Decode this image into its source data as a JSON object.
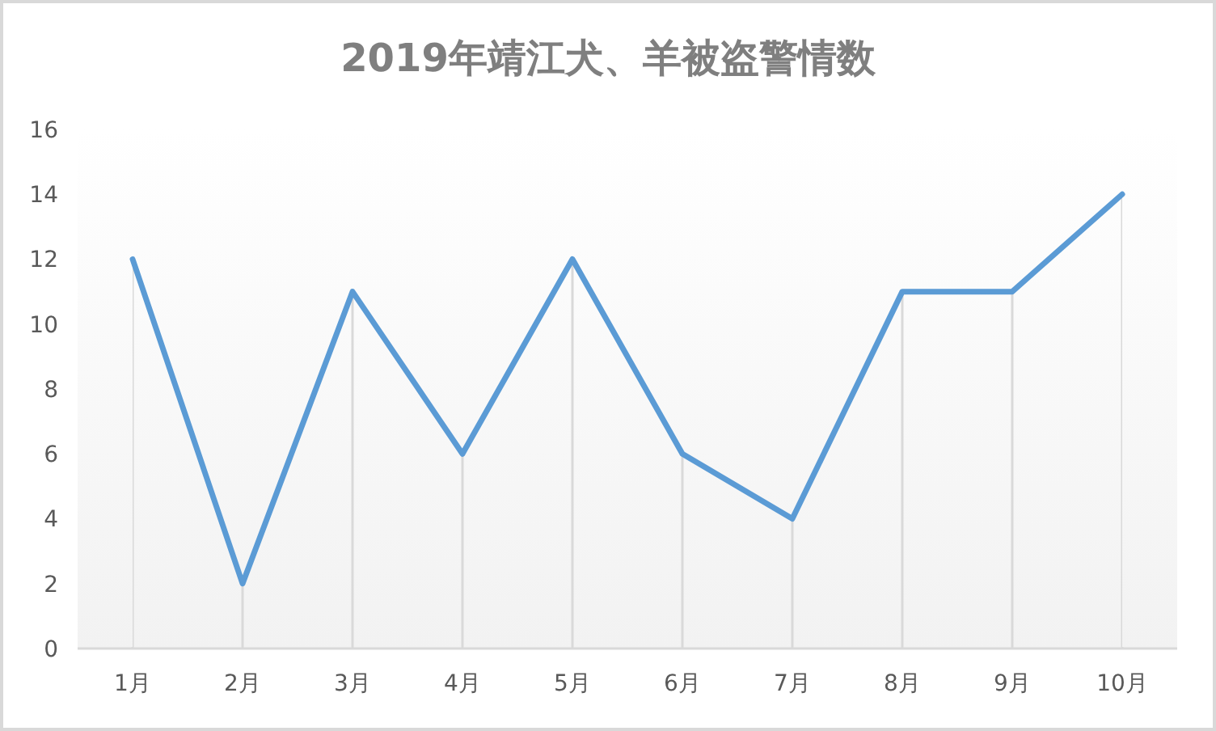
{
  "chart_data": {
    "type": "line",
    "title": "2019年靖江犬、羊被盗警情数",
    "categories": [
      "1月",
      "2月",
      "3月",
      "4月",
      "5月",
      "6月",
      "7月",
      "8月",
      "9月",
      "10月"
    ],
    "series": [
      {
        "color": "#5b9bd5",
        "values": [
          12,
          2,
          11,
          6,
          12,
          6,
          4,
          11,
          11,
          14
        ]
      }
    ],
    "ylim": [
      0,
      16
    ],
    "yticks": [
      0,
      2,
      4,
      6,
      8,
      10,
      12,
      14,
      16
    ],
    "grid": "x",
    "marker": "none",
    "line_style": "solid"
  }
}
